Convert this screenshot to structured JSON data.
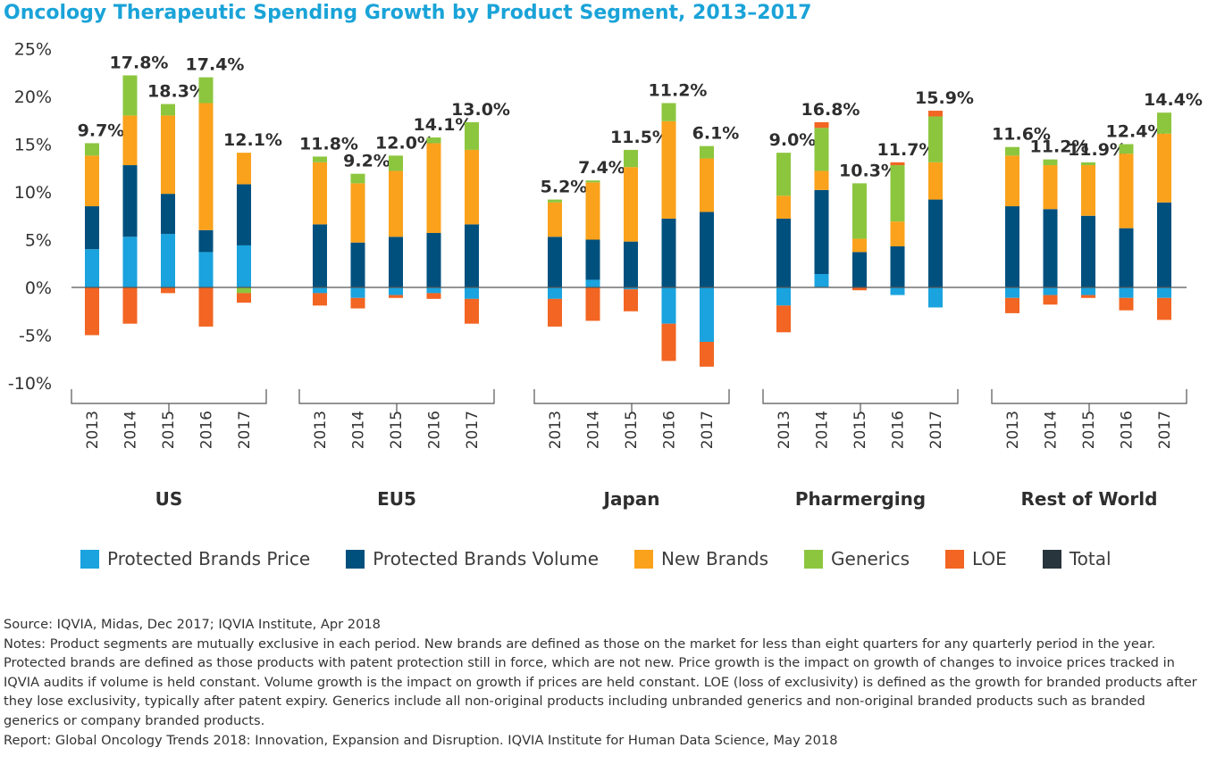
{
  "title": "Oncology Therapeutic Spending Growth by Product Segment, 2013–2017",
  "chart_data": {
    "type": "bar",
    "stacked": true,
    "ylim": [
      -10,
      25
    ],
    "yticks": [
      25,
      20,
      15,
      10,
      5,
      0,
      -5,
      -10
    ],
    "ytick_labels": [
      "25%",
      "20%",
      "15%",
      "10%",
      "5%",
      "0%",
      "-5%",
      "-10%"
    ],
    "years": [
      "2013",
      "2014",
      "2015",
      "2016",
      "2017"
    ],
    "series_names": [
      "Protected Brands Price",
      "Protected Brands Volume",
      "New Brands",
      "Generics",
      "LOE",
      "Total"
    ],
    "colors": {
      "Protected Brands Price": "#1aa3de",
      "Protected Brands Volume": "#00507e",
      "New Brands": "#faa21b",
      "Generics": "#8cc63f",
      "LOE": "#f26522",
      "Total": "#29353d"
    },
    "groups": [
      {
        "name": "US",
        "bars": [
          {
            "year": "2013",
            "price": 4.0,
            "volume": 4.5,
            "new": 5.3,
            "generics": 1.3,
            "loe": -5.0,
            "total_label": "9.7%"
          },
          {
            "year": "2014",
            "price": 5.3,
            "volume": 7.5,
            "new": 5.2,
            "generics": 4.2,
            "loe": -3.8,
            "total_label": "17.8%"
          },
          {
            "year": "2015",
            "price": 5.6,
            "volume": 4.2,
            "new": 8.2,
            "generics": 1.2,
            "loe": -0.6,
            "total_label": "18.3%"
          },
          {
            "year": "2016",
            "price": 3.7,
            "volume": 2.3,
            "new": 13.3,
            "generics": 2.7,
            "loe": -4.1,
            "total_label": "17.4%"
          },
          {
            "year": "2017",
            "price": 4.4,
            "volume": 6.4,
            "new": 3.3,
            "generics": -0.6,
            "loe": -1.0,
            "total_label": "12.1%"
          }
        ]
      },
      {
        "name": "EU5",
        "bars": [
          {
            "year": "2013",
            "price": -0.6,
            "volume": 6.6,
            "new": 6.5,
            "generics": 0.6,
            "loe": -1.3,
            "total_label": "11.8%"
          },
          {
            "year": "2014",
            "price": -1.1,
            "volume": 4.7,
            "new": 6.2,
            "generics": 1.0,
            "loe": -1.1,
            "total_label": "9.2%"
          },
          {
            "year": "2015",
            "price": -0.8,
            "volume": 5.3,
            "new": 6.9,
            "generics": 1.6,
            "loe": -0.3,
            "total_label": "12.0%"
          },
          {
            "year": "2016",
            "price": -0.6,
            "volume": 5.7,
            "new": 9.4,
            "generics": 0.6,
            "loe": -0.6,
            "total_label": "14.1%"
          },
          {
            "year": "2017",
            "price": -1.2,
            "volume": 6.6,
            "new": 7.8,
            "generics": 2.9,
            "loe": -2.6,
            "total_label": "13.0%"
          }
        ]
      },
      {
        "name": "Japan",
        "bars": [
          {
            "year": "2013",
            "price": -1.2,
            "volume": 5.3,
            "new": 3.6,
            "generics": 0.3,
            "loe": -2.9,
            "total_label": "5.2%"
          },
          {
            "year": "2014",
            "price": 0.8,
            "volume": 4.2,
            "new": 6.0,
            "generics": 0.2,
            "loe": -3.5,
            "total_label": "7.4%"
          },
          {
            "year": "2015",
            "price": -0.2,
            "volume": 4.8,
            "new": 7.8,
            "generics": 1.8,
            "loe": -2.3,
            "total_label": "11.5%"
          },
          {
            "year": "2016",
            "price": -3.8,
            "volume": 7.2,
            "new": 10.2,
            "generics": 1.9,
            "loe": -3.9,
            "total_label": "11.2%"
          },
          {
            "year": "2017",
            "price": -5.7,
            "volume": 7.9,
            "new": 5.6,
            "generics": 1.3,
            "loe": -2.6,
            "total_label": "6.1%"
          }
        ]
      },
      {
        "name": "Pharmerging",
        "bars": [
          {
            "year": "2013",
            "price": -1.9,
            "volume": 7.2,
            "new": 2.4,
            "generics": 4.5,
            "loe": -2.8,
            "total_label": "9.0%"
          },
          {
            "year": "2014",
            "price": 1.4,
            "volume": 8.8,
            "new": 2.0,
            "generics": 4.5,
            "loe": 0.6,
            "total_label": "16.8%"
          },
          {
            "year": "2015",
            "price": 0.0,
            "volume": 3.7,
            "new": 1.4,
            "generics": 5.8,
            "loe": -0.3,
            "total_label": "10.3%"
          },
          {
            "year": "2016",
            "price": -0.8,
            "volume": 4.3,
            "new": 2.6,
            "generics": 5.9,
            "loe": 0.3,
            "total_label": "11.7%"
          },
          {
            "year": "2017",
            "price": -2.1,
            "volume": 9.2,
            "new": 3.9,
            "generics": 4.8,
            "loe": 0.6,
            "total_label": "15.9%"
          }
        ]
      },
      {
        "name": "Rest of World",
        "bars": [
          {
            "year": "2013",
            "price": -1.1,
            "volume": 8.5,
            "new": 5.3,
            "generics": 0.9,
            "loe": -1.6,
            "total_label": "11.6%"
          },
          {
            "year": "2014",
            "price": -0.8,
            "volume": 8.2,
            "new": 4.6,
            "generics": 0.6,
            "loe": -1.0,
            "total_label": "11.2%"
          },
          {
            "year": "2015",
            "price": -0.8,
            "volume": 7.5,
            "new": 5.3,
            "generics": 0.3,
            "loe": -0.3,
            "total_label": "11.9%"
          },
          {
            "year": "2016",
            "price": -1.1,
            "volume": 6.2,
            "new": 7.8,
            "generics": 1.0,
            "loe": -1.3,
            "total_label": "12.4%"
          },
          {
            "year": "2017",
            "price": -1.1,
            "volume": 8.9,
            "new": 7.2,
            "generics": 2.2,
            "loe": -2.3,
            "total_label": "14.4%"
          }
        ]
      }
    ]
  },
  "notes": {
    "source": "Source: IQVIA, Midas, Dec 2017; IQVIA Institute, Apr 2018",
    "notes": "Notes: Product segments are mutually exclusive in each period. New brands are defined as those on the market for less than eight quarters for any quarterly period in the year. Protected brands are defined as those products with patent protection still in force, which are not new. Price growth is the impact on growth of changes to invoice prices tracked in IQVIA audits if volume is held constant. Volume growth is the impact on growth if prices are held constant. LOE (loss of exclusivity) is defined as the growth for branded products after they lose exclusivity, typically after patent expiry. Generics include all non-original products including unbranded generics and non-original branded products such as branded generics or company branded products.",
    "report": "Report: Global Oncology Trends 2018: Innovation, Expansion and Disruption. IQVIA Institute for Human Data Science, May 2018"
  }
}
